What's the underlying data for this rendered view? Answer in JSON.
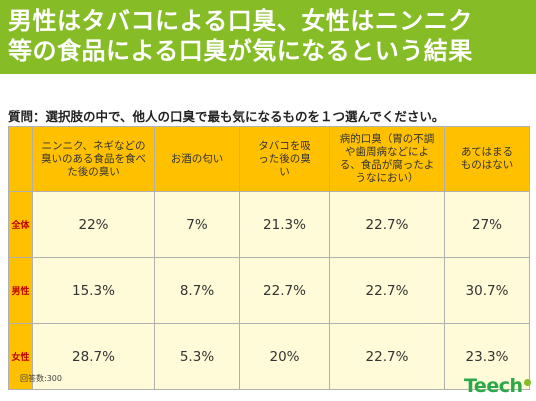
{
  "banner": {
    "line1": "男性はタバコによる口臭、女性はニンニク",
    "line2": "等の食品による口臭が気になるという結果"
  },
  "question": "質問：選択肢の中で、他人の口臭で最も気になるものを１つ選んでください。",
  "note": "回答数:300",
  "logo": "Teech",
  "colors": {
    "banner": "#86bc25",
    "header": "#ffc000",
    "cell": "#fffbd9",
    "rowlabel_text": "#c00000"
  },
  "chart_data": {
    "type": "table",
    "columns": [
      "ニンニク、ネギなどの臭いのある食品を食べた後の臭い",
      "お酒の匂い",
      "タバコを吸った後の臭い",
      "病的口臭（胃の不調や歯周病などによる、食品が腐ったようなにおい）",
      "あてはまるものはない"
    ],
    "rows": [
      {
        "label": "全体",
        "values": [
          "22%",
          "7%",
          "21.3%",
          "22.7%",
          "27%"
        ]
      },
      {
        "label": "男性",
        "values": [
          "15.3%",
          "8.7%",
          "22.7%",
          "22.7%",
          "30.7%"
        ]
      },
      {
        "label": "女性",
        "values": [
          "28.7%",
          "5.3%",
          "20%",
          "22.7%",
          "23.3%"
        ]
      }
    ]
  }
}
